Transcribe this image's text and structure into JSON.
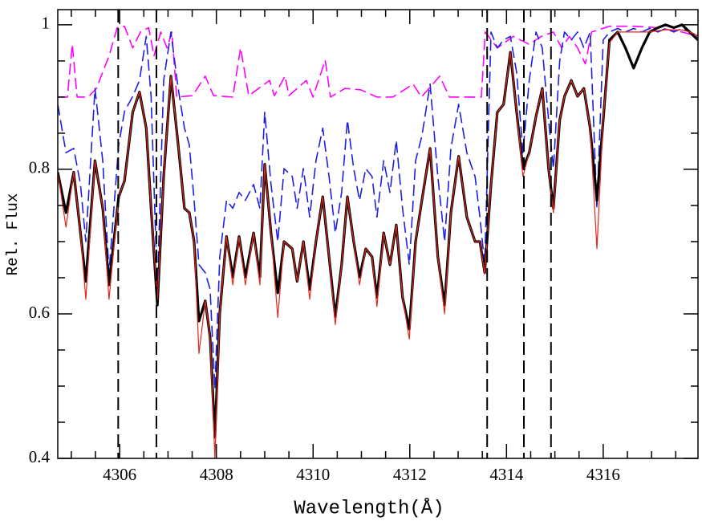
{
  "chart_data": {
    "type": "line",
    "xlabel": "Wavelength(Å)",
    "ylabel": "Rel. Flux",
    "xlim": [
      4304.72,
      4317.96
    ],
    "ylim": [
      0.4,
      1.021
    ],
    "xticks": [
      4306,
      4308,
      4310,
      4312,
      4314,
      4316
    ],
    "yticks": [
      0.4,
      0.6,
      0.8,
      1
    ],
    "xminorticks": [
      4305,
      4305.5,
      4306.5,
      4307,
      4307.5,
      4308.5,
      4309,
      4309.5,
      4310.5,
      4311,
      4311.5,
      4312.5,
      4313,
      4313.5,
      4314.5,
      4315,
      4315.5,
      4316.5,
      4317,
      4317.5
    ],
    "yminorticks": [
      0.45,
      0.5,
      0.55,
      0.65,
      0.7,
      0.75,
      0.85,
      0.9,
      0.95
    ],
    "vlines": [
      4305.97,
      4306.76,
      4313.6,
      4314.36,
      4314.92
    ],
    "x": [
      4304.72,
      4304.89,
      4305.05,
      4305.19,
      4305.3,
      4305.49,
      4305.65,
      4305.78,
      4305.98,
      4306.1,
      4306.27,
      4306.41,
      4306.55,
      4306.65,
      4306.78,
      4306.91,
      4307.06,
      4307.21,
      4307.34,
      4307.44,
      4307.54,
      4307.64,
      4307.77,
      4307.87,
      4307.97,
      4308.07,
      4308.21,
      4308.34,
      4308.47,
      4308.6,
      4308.77,
      4308.9,
      4309.0,
      4309.13,
      4309.27,
      4309.4,
      4309.57,
      4309.67,
      4309.8,
      4309.93,
      4310.06,
      4310.2,
      4310.33,
      4310.46,
      4310.59,
      4310.71,
      4310.84,
      4310.96,
      4311.09,
      4311.22,
      4311.32,
      4311.46,
      4311.59,
      4311.72,
      4311.85,
      4311.99,
      4312.12,
      4312.25,
      4312.42,
      4312.58,
      4312.72,
      4312.85,
      4313.01,
      4313.18,
      4313.35,
      4313.45,
      4313.55,
      4313.68,
      4313.81,
      4313.94,
      4314.08,
      4314.21,
      4314.34,
      4314.47,
      4314.61,
      4314.74,
      4314.87,
      4314.97,
      4315.1,
      4315.2,
      4315.34,
      4315.47,
      4315.6,
      4315.73,
      4315.87,
      4316.0,
      4316.13,
      4316.3,
      4316.46,
      4316.63,
      4316.8,
      4316.96,
      4317.13,
      4317.29,
      4317.46,
      4317.63,
      4317.79,
      4317.96
    ],
    "series": [
      {
        "color": "#ff00ff",
        "dashed": true,
        "x": [
          4304.72,
          4304.92,
          4305.02,
          4305.12,
          4305.35,
          4305.52,
          4305.78,
          4305.95,
          4306.1,
          4306.27,
          4306.43,
          4306.6,
          4306.71,
          4306.85,
          4306.98,
          4307.08,
          4307.18,
          4307.51,
          4307.77,
          4307.94,
          4308.34,
          4308.5,
          4308.67,
          4309.1,
          4309.2,
          4309.42,
          4309.5,
          4309.86,
          4310.0,
          4310.25,
          4310.36,
          4310.66,
          4310.99,
          4311.32,
          4311.65,
          4312.07,
          4312.24,
          4312.62,
          4312.82,
          4313.15,
          4313.48,
          4313.56,
          4313.81,
          4314.14,
          4314.47,
          4314.72,
          4314.97,
          4315.14,
          4315.3,
          4315.47,
          4315.63,
          4315.76,
          4316.13,
          4316.63,
          4317.13,
          4317.63,
          4317.96
        ],
        "values": [
          0.9,
          0.9,
          0.973,
          0.9,
          0.9,
          0.912,
          0.957,
          0.996,
          0.998,
          0.968,
          0.99,
          0.996,
          0.957,
          0.99,
          0.968,
          0.99,
          0.9,
          0.902,
          0.929,
          0.902,
          0.9,
          0.968,
          0.902,
          0.923,
          0.902,
          0.929,
          0.902,
          0.923,
          0.9,
          0.951,
          0.9,
          0.912,
          0.91,
          0.9,
          0.9,
          0.918,
          0.9,
          0.929,
          0.9,
          0.9,
          0.9,
          0.99,
          0.968,
          0.984,
          0.973,
          0.984,
          0.99,
          0.968,
          0.984,
          0.968,
          0.946,
          0.99,
          0.998,
          0.998,
          0.996,
          0.99,
          0.984
        ]
      },
      {
        "color": "#1f1fe0",
        "dashed": true,
        "values": [
          0.89,
          0.823,
          0.829,
          0.779,
          0.7,
          0.912,
          0.812,
          0.657,
          0.834,
          0.88,
          0.901,
          0.923,
          0.984,
          0.901,
          0.634,
          0.923,
          0.99,
          0.912,
          0.857,
          0.834,
          0.757,
          0.668,
          0.657,
          0.634,
          0.496,
          0.679,
          0.757,
          0.746,
          0.768,
          0.757,
          0.779,
          0.746,
          0.879,
          0.779,
          0.7,
          0.801,
          0.79,
          0.746,
          0.801,
          0.734,
          0.812,
          0.857,
          0.79,
          0.712,
          0.768,
          0.868,
          0.801,
          0.757,
          0.801,
          0.79,
          0.734,
          0.812,
          0.768,
          0.84,
          0.746,
          0.668,
          0.812,
          0.846,
          0.918,
          0.79,
          0.7,
          0.829,
          0.89,
          0.823,
          0.79,
          0.734,
          0.668,
          0.99,
          0.968,
          0.979,
          0.984,
          0.934,
          0.823,
          0.923,
          0.99,
          0.968,
          0.868,
          0.801,
          0.95,
          0.99,
          0.979,
          0.99,
          0.968,
          0.99,
          0.746,
          0.979,
          0.99,
          0.995,
          0.99,
          0.995,
          0.99,
          0.995,
          0.99,
          0.995,
          0.99,
          0.995,
          0.99,
          0.985
        ]
      },
      {
        "color": "#000000",
        "dashed": false,
        "values": [
          0.796,
          0.74,
          0.796,
          0.712,
          0.645,
          0.812,
          0.746,
          0.64,
          0.762,
          0.784,
          0.879,
          0.907,
          0.857,
          0.746,
          0.612,
          0.79,
          0.929,
          0.834,
          0.746,
          0.74,
          0.7,
          0.59,
          0.618,
          0.568,
          0.429,
          0.601,
          0.707,
          0.651,
          0.707,
          0.651,
          0.712,
          0.651,
          0.807,
          0.712,
          0.629,
          0.7,
          0.69,
          0.645,
          0.7,
          0.634,
          0.7,
          0.762,
          0.679,
          0.596,
          0.668,
          0.762,
          0.7,
          0.651,
          0.69,
          0.679,
          0.623,
          0.712,
          0.668,
          0.723,
          0.623,
          0.579,
          0.7,
          0.757,
          0.829,
          0.679,
          0.612,
          0.74,
          0.818,
          0.734,
          0.7,
          0.7,
          0.657,
          0.779,
          0.879,
          0.89,
          0.962,
          0.879,
          0.801,
          0.823,
          0.873,
          0.912,
          0.801,
          0.746,
          0.868,
          0.901,
          0.923,
          0.901,
          0.912,
          0.857,
          0.757,
          0.868,
          0.979,
          0.99,
          0.968,
          0.94,
          0.968,
          0.99,
          0.996,
          1.0,
          0.996,
          1.0,
          0.99,
          0.979
        ]
      },
      {
        "color": "#e0281f",
        "dashed": false,
        "values": [
          0.796,
          0.72,
          0.796,
          0.712,
          0.62,
          0.812,
          0.746,
          0.62,
          0.762,
          0.784,
          0.879,
          0.907,
          0.857,
          0.746,
          0.62,
          0.79,
          0.929,
          0.834,
          0.746,
          0.74,
          0.7,
          0.545,
          0.618,
          0.568,
          0.4,
          0.601,
          0.707,
          0.64,
          0.707,
          0.64,
          0.712,
          0.64,
          0.807,
          0.712,
          0.595,
          0.7,
          0.69,
          0.645,
          0.7,
          0.62,
          0.7,
          0.762,
          0.679,
          0.585,
          0.668,
          0.762,
          0.7,
          0.64,
          0.69,
          0.679,
          0.61,
          0.712,
          0.668,
          0.723,
          0.623,
          0.565,
          0.7,
          0.757,
          0.829,
          0.679,
          0.6,
          0.74,
          0.818,
          0.734,
          0.7,
          0.7,
          0.655,
          0.779,
          0.879,
          0.89,
          0.962,
          0.879,
          0.79,
          0.823,
          0.873,
          0.912,
          0.801,
          0.74,
          0.868,
          0.901,
          0.923,
          0.901,
          0.912,
          0.857,
          0.69,
          0.87,
          0.975,
          0.99,
          0.99,
          0.99,
          0.99,
          0.99,
          0.992,
          0.993,
          0.993,
          0.993,
          0.99,
          0.985
        ]
      }
    ]
  }
}
